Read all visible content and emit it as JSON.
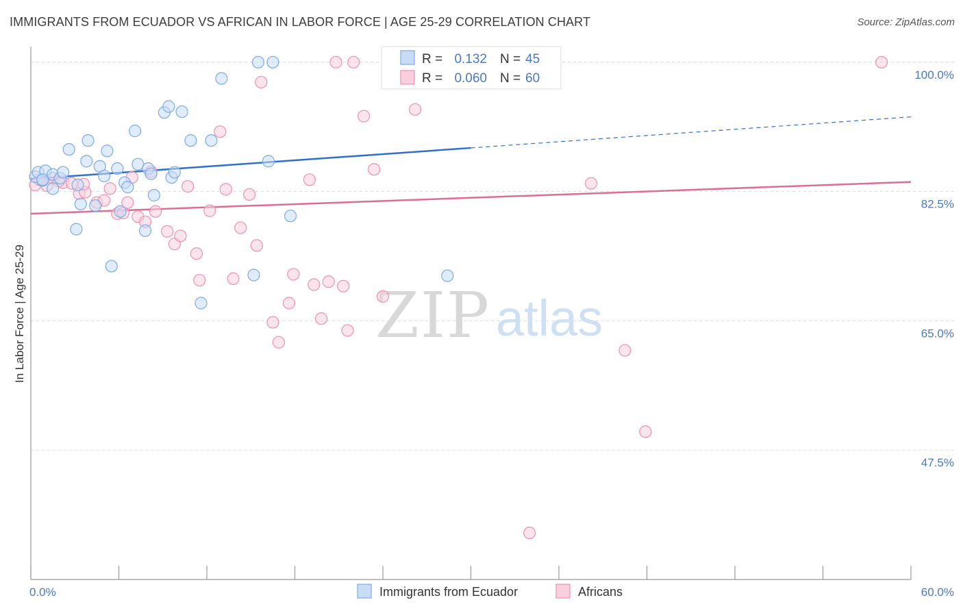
{
  "title": "IMMIGRANTS FROM ECUADOR VS AFRICAN IN LABOR FORCE | AGE 25-29 CORRELATION CHART",
  "source": "Source: ZipAtlas.com",
  "watermark": {
    "zip": "ZIP",
    "atlas": "atlas"
  },
  "chart_data": {
    "type": "scatter",
    "ylabel": "In Labor Force | Age 25-29",
    "xlim": [
      0,
      60
    ],
    "ylim": [
      30,
      101
    ],
    "x_ticks": [
      0,
      6,
      12,
      18,
      24,
      30,
      36,
      42,
      48,
      54,
      60
    ],
    "x_tick_labels": {
      "left": "0.0%",
      "right": "60.0%"
    },
    "y_ticks": [
      100.0,
      82.5,
      65.0,
      47.5
    ],
    "y_tick_labels": [
      "100.0%",
      "82.5%",
      "65.0%",
      "47.5%"
    ],
    "grid": true,
    "legend_position": "top-center",
    "legend": [
      {
        "r_label": "R =",
        "r_value": "0.132",
        "n_label": "N =",
        "n_value": "45"
      },
      {
        "r_label": "R =",
        "r_value": "0.060",
        "n_label": "N =",
        "n_value": "60"
      }
    ],
    "series": [
      {
        "name": "Immigrants from Ecuador",
        "color": "#7aaae8",
        "fill": "#c9dcf5",
        "trend": {
          "x0": 0,
          "y0": 84.2,
          "x1": 30,
          "y1": 88.4,
          "x_end": 60,
          "y_end": 92.6
        },
        "points": [
          [
            0.3,
            84.5
          ],
          [
            0.5,
            85.1
          ],
          [
            0.8,
            84.0
          ],
          [
            1.0,
            85.3
          ],
          [
            1.5,
            84.8
          ],
          [
            1.5,
            82.9
          ],
          [
            2.0,
            84.3
          ],
          [
            2.2,
            85.1
          ],
          [
            2.6,
            88.2
          ],
          [
            3.1,
            77.4
          ],
          [
            3.2,
            83.4
          ],
          [
            3.4,
            80.8
          ],
          [
            3.8,
            86.6
          ],
          [
            3.9,
            89.4
          ],
          [
            4.4,
            80.6
          ],
          [
            4.7,
            85.9
          ],
          [
            5.0,
            84.6
          ],
          [
            5.2,
            88.0
          ],
          [
            5.5,
            72.4
          ],
          [
            5.9,
            85.6
          ],
          [
            6.1,
            79.8
          ],
          [
            6.4,
            83.7
          ],
          [
            6.6,
            83.1
          ],
          [
            7.1,
            90.7
          ],
          [
            7.3,
            86.2
          ],
          [
            7.8,
            77.2
          ],
          [
            8.0,
            85.6
          ],
          [
            8.2,
            84.9
          ],
          [
            8.4,
            82.0
          ],
          [
            9.1,
            93.2
          ],
          [
            9.4,
            94.0
          ],
          [
            9.6,
            84.4
          ],
          [
            9.8,
            85.1
          ],
          [
            10.3,
            93.3
          ],
          [
            10.9,
            89.4
          ],
          [
            11.6,
            67.4
          ],
          [
            12.3,
            89.4
          ],
          [
            13.0,
            97.8
          ],
          [
            15.2,
            71.2
          ],
          [
            15.5,
            100.0
          ],
          [
            16.5,
            100.0
          ],
          [
            16.2,
            86.6
          ],
          [
            17.7,
            79.2
          ],
          [
            28.4,
            71.1
          ],
          [
            0.8,
            84.1
          ]
        ]
      },
      {
        "name": "Africans",
        "color": "#ee8fb0",
        "fill": "#f8cfdd",
        "trend": {
          "x0": 0,
          "y0": 79.5,
          "x1": 60,
          "y1": 83.8
        },
        "points": [
          [
            0.3,
            83.4
          ],
          [
            0.6,
            84.1
          ],
          [
            1.1,
            83.3
          ],
          [
            1.5,
            84.3
          ],
          [
            2.2,
            83.7
          ],
          [
            2.8,
            83.6
          ],
          [
            3.3,
            82.2
          ],
          [
            3.7,
            82.4
          ],
          [
            4.5,
            81.0
          ],
          [
            5.0,
            81.3
          ],
          [
            5.4,
            82.9
          ],
          [
            5.9,
            79.5
          ],
          [
            6.3,
            79.6
          ],
          [
            6.9,
            84.4
          ],
          [
            7.3,
            79.1
          ],
          [
            7.8,
            78.4
          ],
          [
            8.2,
            85.2
          ],
          [
            8.5,
            79.8
          ],
          [
            9.3,
            77.1
          ],
          [
            9.8,
            75.4
          ],
          [
            10.2,
            76.5
          ],
          [
            10.7,
            83.2
          ],
          [
            11.3,
            74.1
          ],
          [
            11.5,
            70.5
          ],
          [
            12.2,
            79.9
          ],
          [
            12.9,
            90.6
          ],
          [
            13.3,
            82.8
          ],
          [
            13.8,
            70.7
          ],
          [
            14.3,
            77.6
          ],
          [
            14.9,
            82.1
          ],
          [
            15.4,
            75.2
          ],
          [
            15.7,
            97.3
          ],
          [
            16.5,
            64.8
          ],
          [
            16.9,
            62.1
          ],
          [
            17.6,
            67.4
          ],
          [
            17.9,
            71.3
          ],
          [
            19.0,
            84.1
          ],
          [
            19.3,
            69.9
          ],
          [
            19.8,
            65.3
          ],
          [
            20.3,
            70.3
          ],
          [
            20.8,
            100.0
          ],
          [
            21.3,
            69.7
          ],
          [
            21.6,
            63.7
          ],
          [
            22.0,
            100.0
          ],
          [
            22.7,
            92.7
          ],
          [
            23.4,
            85.5
          ],
          [
            24.0,
            68.3
          ],
          [
            24.5,
            100.0
          ],
          [
            26.2,
            93.6
          ],
          [
            27.5,
            100.0
          ],
          [
            31.2,
            100.0
          ],
          [
            32.8,
            100.0
          ],
          [
            34.0,
            36.3
          ],
          [
            38.2,
            83.6
          ],
          [
            40.5,
            61.0
          ],
          [
            41.9,
            50.0
          ],
          [
            58.0,
            100.0
          ],
          [
            3.6,
            83.5
          ],
          [
            1.9,
            83.9
          ],
          [
            6.6,
            81.0
          ]
        ]
      }
    ]
  }
}
